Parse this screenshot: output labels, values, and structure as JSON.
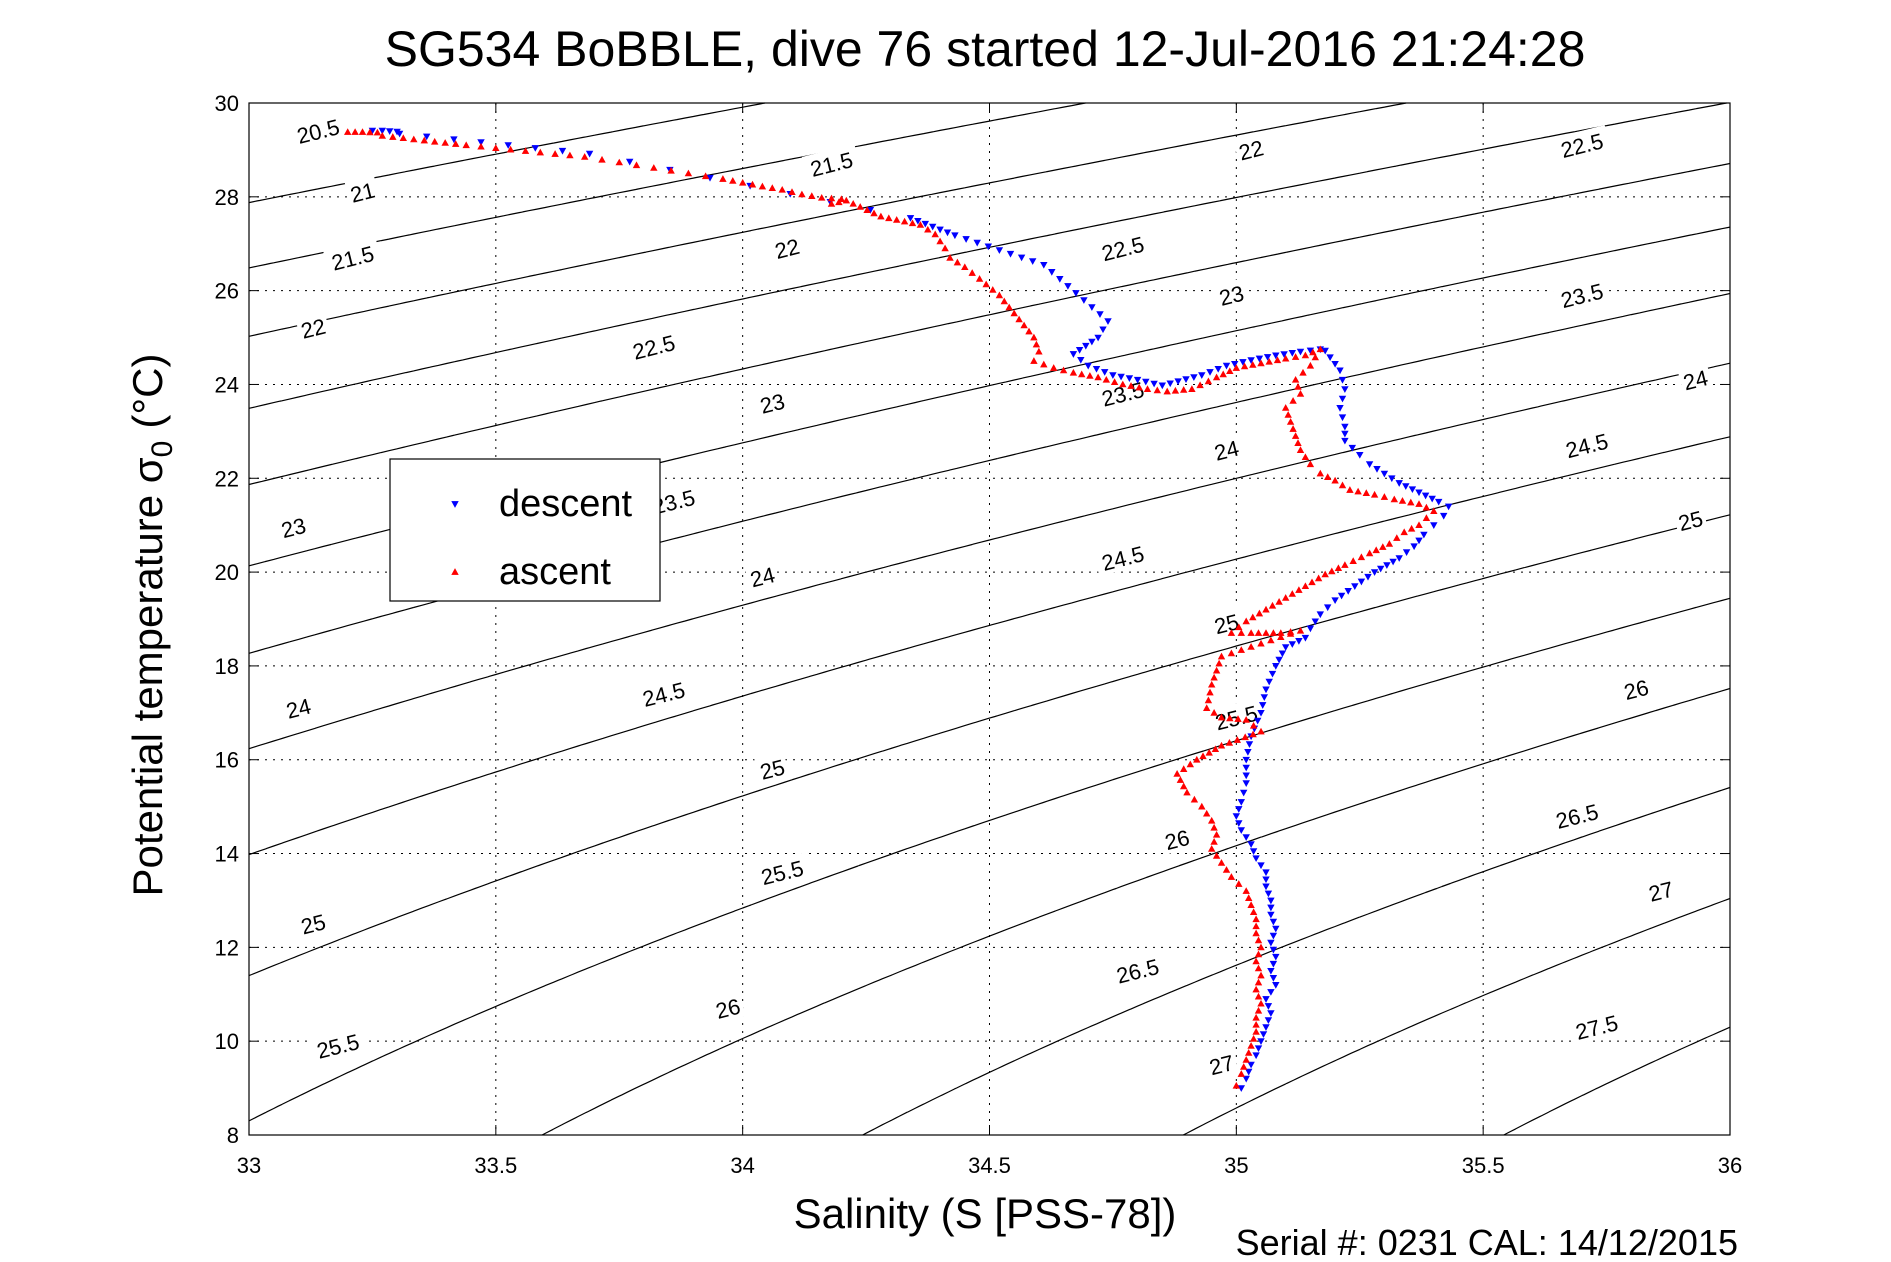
{
  "chart_data": {
    "type": "scatter",
    "title": "SG534 BoBBLE, dive 76 started 12-Jul-2016 21:24:28",
    "xlabel": "Salinity (S [PSS-78])",
    "ylabel_main": "Potential temperature σ",
    "ylabel_sub": "0",
    "ylabel_unit": "(°C)",
    "footer": "Serial #: 0231  CAL: 14/12/2015",
    "xlim": [
      33,
      36
    ],
    "ylim": [
      8,
      30
    ],
    "xticks": [
      "33",
      "33.5",
      "34",
      "34.5",
      "35",
      "35.5",
      "36"
    ],
    "yticks": [
      "8",
      "10",
      "12",
      "14",
      "16",
      "18",
      "20",
      "22",
      "24",
      "26",
      "28",
      "30"
    ],
    "grid": true,
    "legend_position": "left-middle",
    "contour_levels": [
      "20.5",
      "21",
      "21.5",
      "22",
      "22.5",
      "23",
      "23.5",
      "24",
      "24.5",
      "25",
      "25.5",
      "26",
      "26.5",
      "27",
      "27.5"
    ],
    "contour_labels": [
      {
        "text": "20.5",
        "x": 33.14,
        "y": 29.4
      },
      {
        "text": "21",
        "x": 33.23,
        "y": 28.1
      },
      {
        "text": "21.5",
        "x": 33.21,
        "y": 26.7
      },
      {
        "text": "22",
        "x": 33.13,
        "y": 25.2
      },
      {
        "text": "23",
        "x": 33.09,
        "y": 20.95
      },
      {
        "text": "24",
        "x": 33.1,
        "y": 17.1
      },
      {
        "text": "25",
        "x": 33.13,
        "y": 12.5
      },
      {
        "text": "25.5",
        "x": 33.18,
        "y": 9.9
      },
      {
        "text": "21.5",
        "x": 34.18,
        "y": 28.7
      },
      {
        "text": "22",
        "x": 34.09,
        "y": 26.9
      },
      {
        "text": "22.5",
        "x": 33.82,
        "y": 24.8
      },
      {
        "text": "23",
        "x": 34.06,
        "y": 23.6
      },
      {
        "text": "23.5",
        "x": 33.86,
        "y": 21.5
      },
      {
        "text": "24",
        "x": 34.04,
        "y": 19.9
      },
      {
        "text": "24.5",
        "x": 33.84,
        "y": 17.4
      },
      {
        "text": "25",
        "x": 34.06,
        "y": 15.8
      },
      {
        "text": "25.5",
        "x": 34.08,
        "y": 13.6
      },
      {
        "text": "26",
        "x": 33.97,
        "y": 10.7
      },
      {
        "text": "22",
        "x": 35.03,
        "y": 29.0
      },
      {
        "text": "22.5",
        "x": 34.77,
        "y": 26.9
      },
      {
        "text": "23",
        "x": 34.99,
        "y": 25.9
      },
      {
        "text": "23.5",
        "x": 34.77,
        "y": 23.8
      },
      {
        "text": "24",
        "x": 34.98,
        "y": 22.6
      },
      {
        "text": "24.5",
        "x": 34.77,
        "y": 20.3
      },
      {
        "text": "25",
        "x": 34.98,
        "y": 18.9
      },
      {
        "text": "25.5",
        "x": 35.0,
        "y": 16.9
      },
      {
        "text": "26",
        "x": 34.88,
        "y": 14.3
      },
      {
        "text": "26.5",
        "x": 34.8,
        "y": 11.5
      },
      {
        "text": "27",
        "x": 34.97,
        "y": 9.5
      },
      {
        "text": "22.5",
        "x": 35.7,
        "y": 29.1
      },
      {
        "text": "23.5",
        "x": 35.7,
        "y": 25.9
      },
      {
        "text": "24",
        "x": 35.93,
        "y": 24.1
      },
      {
        "text": "24.5",
        "x": 35.71,
        "y": 22.7
      },
      {
        "text": "25",
        "x": 35.92,
        "y": 21.1
      },
      {
        "text": "26",
        "x": 35.81,
        "y": 17.5
      },
      {
        "text": "26.5",
        "x": 35.69,
        "y": 14.8
      },
      {
        "text": "27",
        "x": 35.86,
        "y": 13.2
      },
      {
        "text": "27.5",
        "x": 35.73,
        "y": 10.3
      }
    ],
    "series": [
      {
        "name": "descent",
        "color": "#0000ff",
        "marker": "triangle-down",
        "points": [
          [
            33.3,
            29.39
          ],
          [
            33.27,
            29.41
          ],
          [
            33.25,
            29.41
          ],
          [
            33.69,
            28.92
          ],
          [
            34.34,
            27.55
          ],
          [
            34.43,
            27.18
          ],
          [
            34.61,
            26.55
          ],
          [
            34.74,
            25.35
          ],
          [
            34.72,
            25.0
          ],
          [
            34.67,
            24.65
          ],
          [
            34.7,
            24.4
          ],
          [
            34.75,
            24.2
          ],
          [
            34.8,
            24.1
          ],
          [
            34.85,
            23.98
          ],
          [
            34.93,
            24.2
          ],
          [
            34.98,
            24.4
          ],
          [
            35.03,
            24.52
          ],
          [
            35.08,
            24.62
          ],
          [
            35.13,
            24.7
          ],
          [
            35.17,
            24.75
          ],
          [
            35.18,
            24.72
          ],
          [
            35.21,
            24.3
          ],
          [
            35.22,
            23.9
          ],
          [
            35.21,
            23.5
          ],
          [
            35.22,
            23.1
          ],
          [
            35.22,
            22.8
          ],
          [
            35.25,
            22.5
          ],
          [
            35.27,
            22.3
          ],
          [
            35.3,
            22.1
          ],
          [
            35.33,
            21.9
          ],
          [
            35.37,
            21.7
          ],
          [
            35.41,
            21.5
          ],
          [
            35.43,
            21.4
          ],
          [
            35.42,
            21.2
          ],
          [
            35.4,
            21.0
          ],
          [
            35.38,
            20.8
          ],
          [
            35.36,
            20.55
          ],
          [
            35.33,
            20.3
          ],
          [
            35.28,
            20.0
          ],
          [
            35.24,
            19.7
          ],
          [
            35.2,
            19.4
          ],
          [
            35.17,
            19.1
          ],
          [
            35.15,
            18.8
          ],
          [
            35.14,
            18.6
          ],
          [
            35.1,
            18.4
          ],
          [
            35.08,
            18.0
          ],
          [
            35.06,
            17.5
          ],
          [
            35.05,
            17.0
          ],
          [
            35.03,
            16.5
          ],
          [
            35.02,
            16.0
          ],
          [
            35.02,
            15.5
          ],
          [
            35.01,
            15.1
          ],
          [
            35.0,
            14.8
          ],
          [
            35.01,
            14.5
          ],
          [
            35.03,
            14.2
          ],
          [
            35.04,
            13.9
          ],
          [
            35.06,
            13.6
          ],
          [
            35.06,
            13.3
          ],
          [
            35.07,
            13.0
          ],
          [
            35.07,
            12.7
          ],
          [
            35.08,
            12.4
          ],
          [
            35.07,
            12.1
          ],
          [
            35.08,
            11.8
          ],
          [
            35.07,
            11.5
          ],
          [
            35.08,
            11.2
          ],
          [
            35.06,
            10.9
          ],
          [
            35.07,
            10.6
          ],
          [
            35.06,
            10.3
          ],
          [
            35.05,
            10.0
          ],
          [
            35.04,
            9.7
          ],
          [
            35.03,
            9.5
          ],
          [
            35.02,
            9.2
          ],
          [
            35.01,
            9.0
          ]
        ]
      },
      {
        "name": "ascent",
        "color": "#ff0000",
        "marker": "triangle-up",
        "points": [
          [
            33.2,
            29.38
          ],
          [
            33.23,
            29.38
          ],
          [
            33.26,
            29.37
          ],
          [
            33.27,
            29.3
          ],
          [
            33.44,
            29.1
          ],
          [
            33.68,
            28.85
          ],
          [
            33.96,
            28.38
          ],
          [
            34.0,
            28.3
          ],
          [
            34.04,
            28.22
          ],
          [
            34.08,
            28.15
          ],
          [
            34.12,
            28.05
          ],
          [
            34.16,
            27.98
          ],
          [
            34.2,
            27.95
          ],
          [
            34.18,
            27.85
          ],
          [
            34.21,
            27.92
          ],
          [
            34.28,
            27.58
          ],
          [
            34.36,
            27.4
          ],
          [
            34.39,
            27.2
          ],
          [
            34.41,
            26.9
          ],
          [
            34.42,
            26.7
          ],
          [
            34.45,
            26.5
          ],
          [
            34.48,
            26.25
          ],
          [
            34.52,
            25.9
          ],
          [
            34.59,
            25.0
          ],
          [
            34.6,
            24.7
          ],
          [
            34.59,
            24.5
          ],
          [
            34.63,
            24.35
          ],
          [
            34.67,
            24.25
          ],
          [
            34.72,
            24.15
          ],
          [
            34.77,
            24.0
          ],
          [
            34.82,
            23.9
          ],
          [
            34.86,
            23.85
          ],
          [
            34.91,
            23.9
          ],
          [
            34.96,
            24.15
          ],
          [
            35.0,
            24.35
          ],
          [
            35.05,
            24.45
          ],
          [
            35.1,
            24.55
          ],
          [
            35.14,
            24.62
          ],
          [
            35.17,
            24.75
          ],
          [
            35.15,
            24.4
          ],
          [
            35.12,
            24.1
          ],
          [
            35.13,
            23.8
          ],
          [
            35.1,
            23.5
          ],
          [
            35.11,
            23.2
          ],
          [
            35.12,
            22.9
          ],
          [
            35.13,
            22.6
          ],
          [
            35.15,
            22.3
          ],
          [
            35.17,
            22.1
          ],
          [
            35.2,
            21.95
          ],
          [
            35.23,
            21.75
          ],
          [
            35.28,
            21.65
          ],
          [
            35.32,
            21.55
          ],
          [
            35.37,
            21.45
          ],
          [
            35.4,
            21.3
          ],
          [
            35.37,
            21.0
          ],
          [
            35.34,
            20.85
          ],
          [
            35.31,
            20.6
          ],
          [
            35.27,
            20.4
          ],
          [
            35.22,
            20.15
          ],
          [
            35.18,
            19.95
          ],
          [
            35.14,
            19.7
          ],
          [
            35.1,
            19.45
          ],
          [
            35.06,
            19.2
          ],
          [
            35.02,
            18.95
          ],
          [
            34.99,
            18.7
          ],
          [
            35.03,
            18.7
          ],
          [
            35.09,
            18.7
          ],
          [
            35.13,
            18.75
          ],
          [
            34.97,
            18.2
          ],
          [
            34.95,
            17.6
          ],
          [
            34.94,
            17.1
          ],
          [
            34.97,
            16.9
          ],
          [
            35.02,
            16.85
          ],
          [
            35.05,
            16.6
          ],
          [
            34.97,
            16.3
          ],
          [
            34.92,
            16.0
          ],
          [
            34.88,
            15.7
          ],
          [
            34.9,
            15.3
          ],
          [
            34.93,
            15.0
          ],
          [
            34.95,
            14.7
          ],
          [
            34.96,
            14.4
          ],
          [
            34.95,
            14.1
          ],
          [
            34.97,
            13.8
          ],
          [
            34.99,
            13.5
          ],
          [
            35.02,
            13.2
          ],
          [
            35.03,
            12.9
          ],
          [
            35.04,
            12.6
          ],
          [
            35.04,
            12.3
          ],
          [
            35.05,
            12.0
          ],
          [
            35.04,
            11.7
          ],
          [
            35.05,
            11.4
          ],
          [
            35.04,
            11.1
          ],
          [
            35.05,
            10.8
          ],
          [
            35.04,
            10.5
          ],
          [
            35.04,
            10.2
          ],
          [
            35.03,
            9.9
          ],
          [
            35.02,
            9.6
          ],
          [
            35.01,
            9.3
          ],
          [
            35.0,
            9.05
          ]
        ]
      }
    ]
  }
}
